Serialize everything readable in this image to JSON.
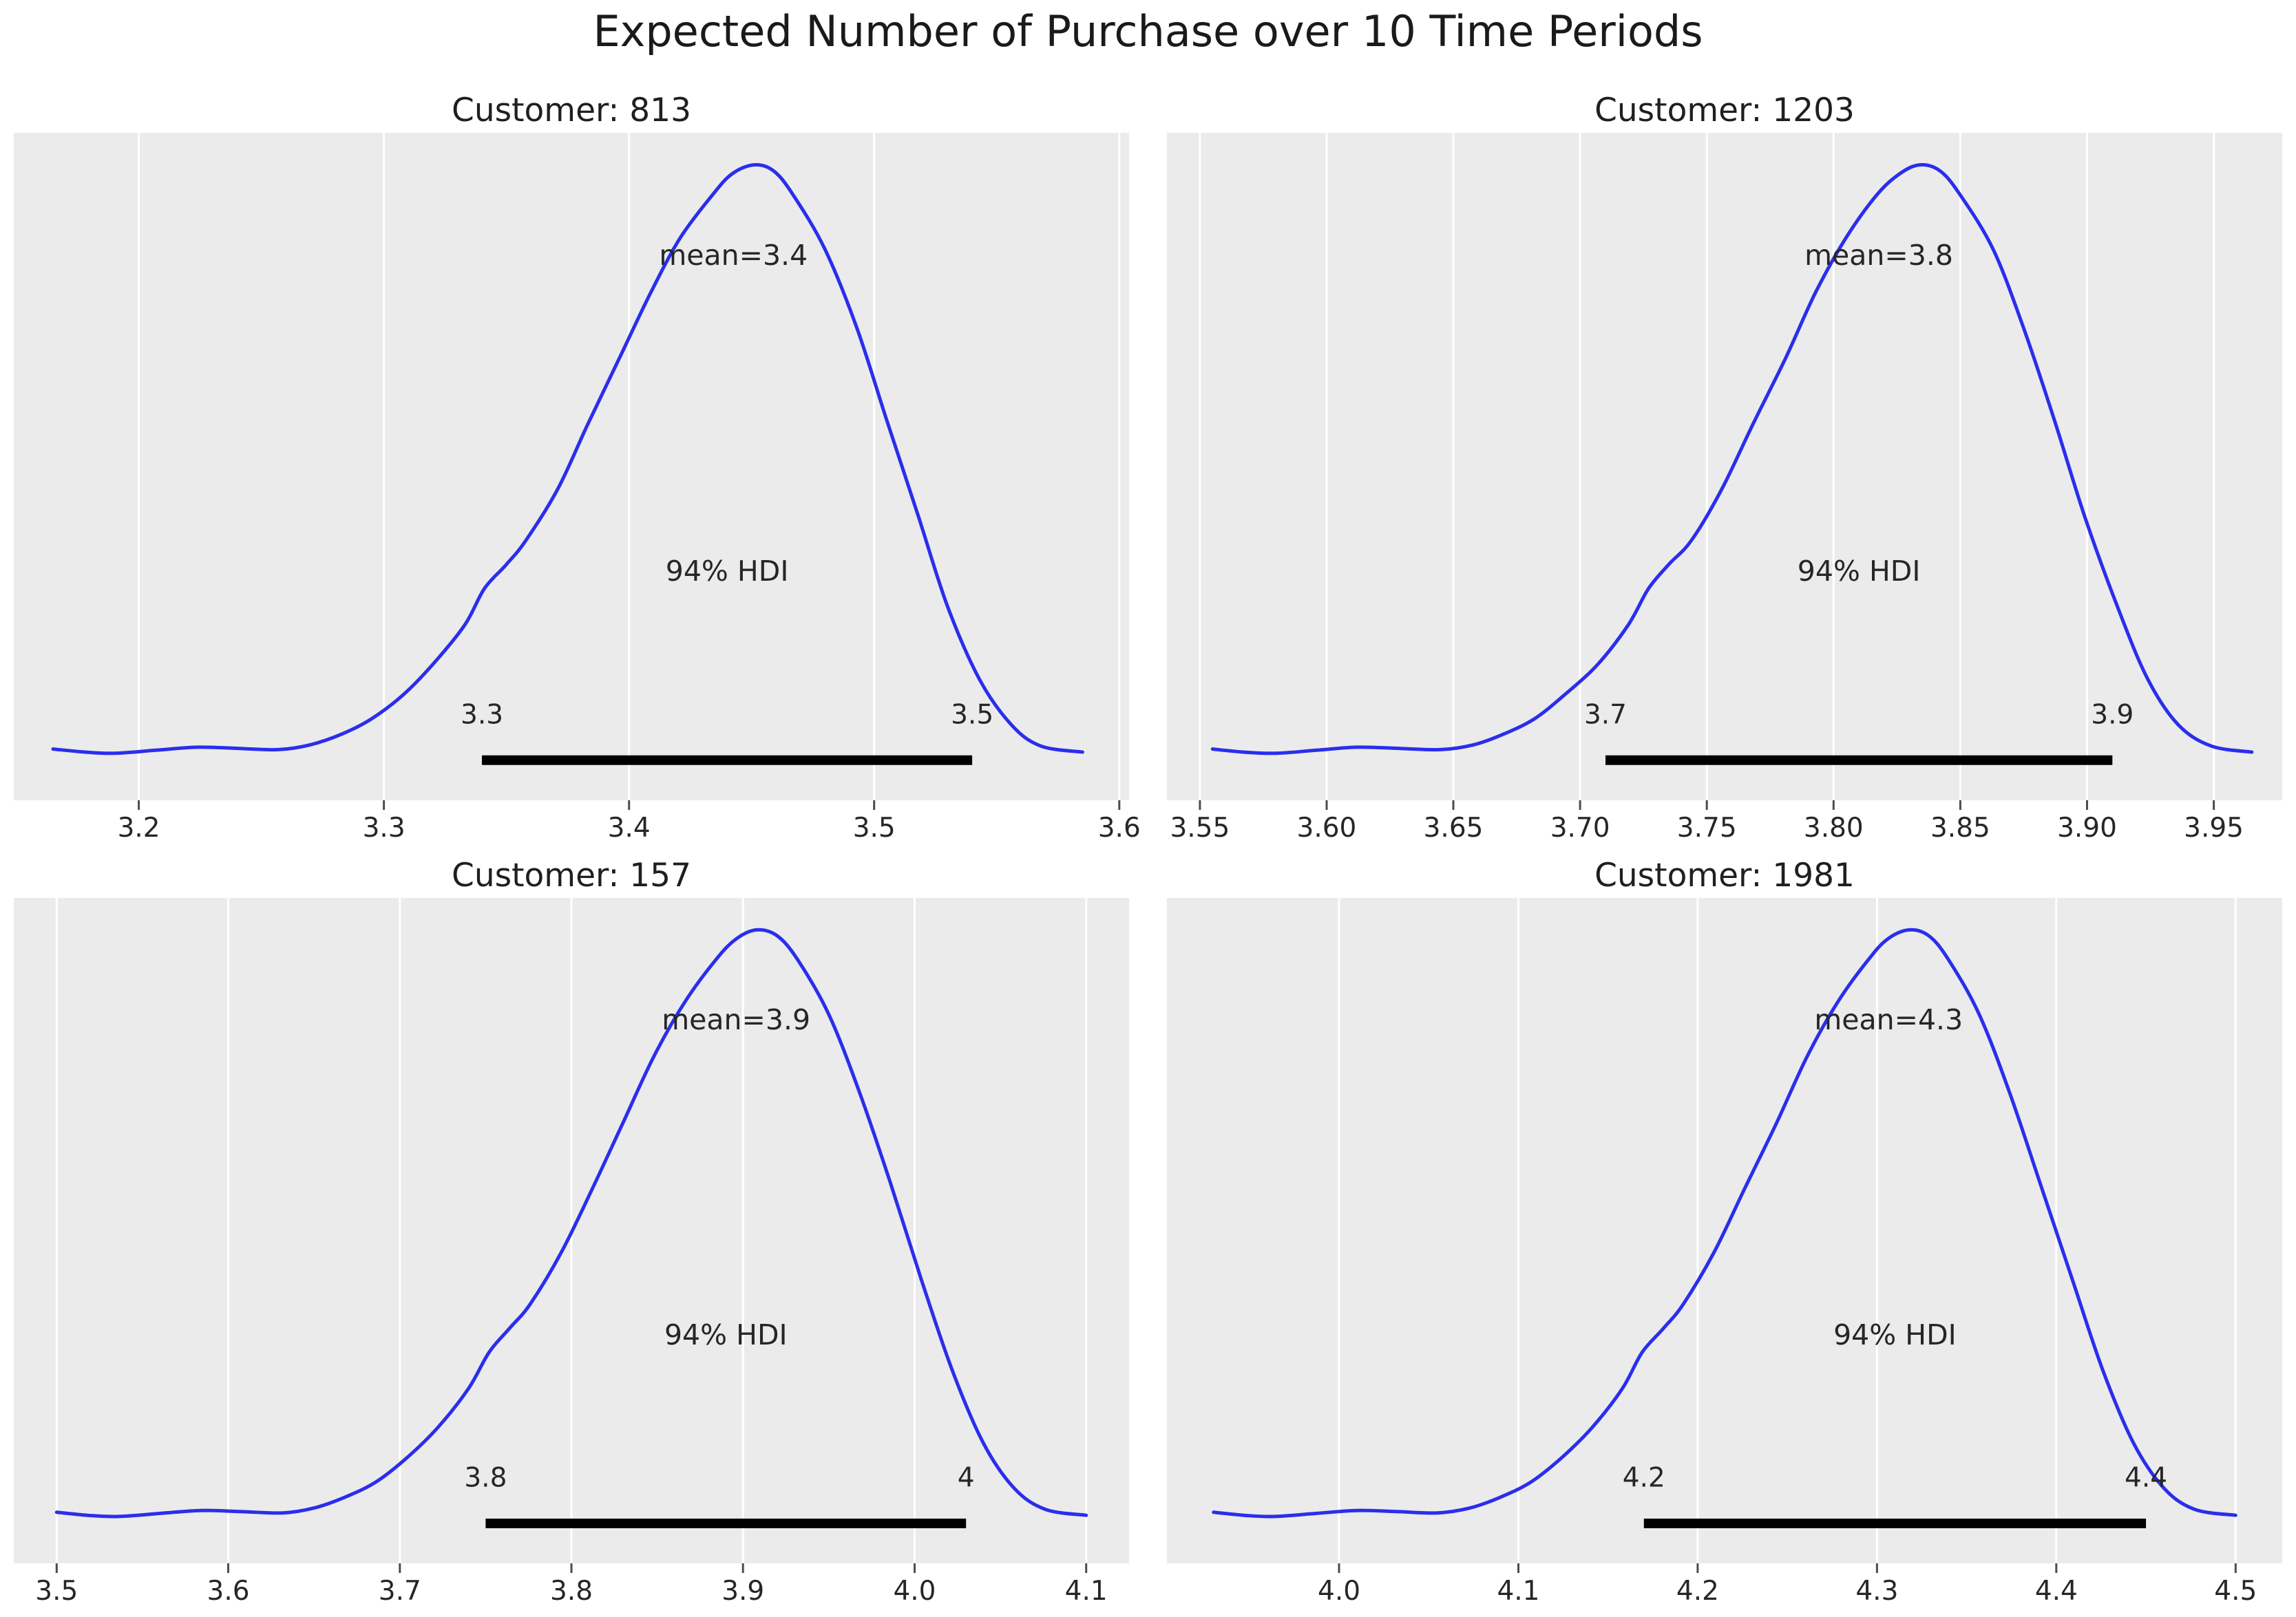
{
  "page": {
    "title": "Expected Number of Purchase over 10 Time Periods"
  },
  "colors": {
    "curve": "#2a2eec",
    "axes_background": "#ebebeb",
    "gridline": "#ffffff",
    "hdi_line": "#000000",
    "tick_mark": "#4d4d4d",
    "text": "#262626"
  },
  "chart_data": [
    {
      "type": "kde",
      "title": "Customer: 813",
      "mean": 3.4,
      "mean_label": "mean=3.4",
      "hdi": {
        "prob_label": "94% HDI",
        "lo": 3.34,
        "hi": 3.54,
        "lo_label": "3.3",
        "hi_label": "3.5"
      },
      "xlim": [
        3.149,
        3.604
      ],
      "xticks": [
        3.2,
        3.3,
        3.4,
        3.5,
        3.6
      ],
      "xtick_labels": [
        "3.2",
        "3.3",
        "3.4",
        "3.5",
        "3.6"
      ],
      "peak_x": 3.451,
      "curve": {
        "x": [
          3.165,
          3.178,
          3.19,
          3.207,
          3.224,
          3.241,
          3.257,
          3.27,
          3.283,
          3.295,
          3.308,
          3.32,
          3.333,
          3.341,
          3.35,
          3.358,
          3.371,
          3.383,
          3.396,
          3.409,
          3.421,
          3.434,
          3.442,
          3.451,
          3.459,
          3.467,
          3.48,
          3.493,
          3.505,
          3.518,
          3.53,
          3.543,
          3.556,
          3.568,
          3.585
        ],
        "y_norm": [
          0.035,
          0.03,
          0.028,
          0.033,
          0.038,
          0.036,
          0.034,
          0.042,
          0.06,
          0.085,
          0.125,
          0.175,
          0.24,
          0.3,
          0.34,
          0.38,
          0.465,
          0.57,
          0.68,
          0.79,
          0.88,
          0.95,
          0.985,
          1.0,
          0.99,
          0.95,
          0.86,
          0.73,
          0.58,
          0.42,
          0.27,
          0.15,
          0.075,
          0.04,
          0.03
        ]
      }
    },
    {
      "type": "kde",
      "title": "Customer: 1203",
      "mean": 3.8,
      "mean_label": "mean=3.8",
      "hdi": {
        "prob_label": "94% HDI",
        "lo": 3.71,
        "hi": 3.91,
        "lo_label": "3.7",
        "hi_label": "3.9"
      },
      "xlim": [
        3.537,
        3.977
      ],
      "xticks": [
        3.55,
        3.6,
        3.65,
        3.7,
        3.75,
        3.8,
        3.85,
        3.9,
        3.95
      ],
      "xtick_labels": [
        "3.55",
        "3.60",
        "3.65",
        "3.70",
        "3.75",
        "3.80",
        "3.85",
        "3.90",
        "3.95"
      ],
      "peak_x": 3.826,
      "curve": {
        "x": [
          3.555,
          3.567,
          3.58,
          3.596,
          3.612,
          3.629,
          3.645,
          3.658,
          3.67,
          3.682,
          3.694,
          3.707,
          3.719,
          3.727,
          3.735,
          3.744,
          3.756,
          3.768,
          3.781,
          3.793,
          3.805,
          3.817,
          3.826,
          3.834,
          3.842,
          3.85,
          3.863,
          3.875,
          3.887,
          3.899,
          3.912,
          3.924,
          3.936,
          3.949,
          3.965
        ],
        "y_norm": [
          0.035,
          0.03,
          0.028,
          0.033,
          0.038,
          0.036,
          0.034,
          0.042,
          0.06,
          0.085,
          0.125,
          0.175,
          0.24,
          0.3,
          0.34,
          0.38,
          0.465,
          0.57,
          0.68,
          0.79,
          0.88,
          0.95,
          0.985,
          1.0,
          0.99,
          0.95,
          0.86,
          0.73,
          0.58,
          0.42,
          0.27,
          0.15,
          0.075,
          0.04,
          0.03
        ]
      }
    },
    {
      "type": "kde",
      "title": "Customer: 157",
      "mean": 3.9,
      "mean_label": "mean=3.9",
      "hdi": {
        "prob_label": "94% HDI",
        "lo": 3.75,
        "hi": 4.03,
        "lo_label": "3.8",
        "hi_label": "4"
      },
      "xlim": [
        3.475,
        4.125
      ],
      "xticks": [
        3.5,
        3.6,
        3.7,
        3.8,
        3.9,
        4.0,
        4.1
      ],
      "xtick_labels": [
        "3.5",
        "3.6",
        "3.7",
        "3.8",
        "3.9",
        "4.0",
        "4.1"
      ],
      "peak_x": 3.908,
      "curve": {
        "x": [
          3.5,
          3.518,
          3.536,
          3.56,
          3.584,
          3.608,
          3.632,
          3.65,
          3.668,
          3.686,
          3.704,
          3.722,
          3.74,
          3.752,
          3.764,
          3.776,
          3.794,
          3.812,
          3.83,
          3.848,
          3.866,
          3.884,
          3.896,
          3.908,
          3.92,
          3.932,
          3.95,
          3.968,
          3.986,
          4.004,
          4.022,
          4.04,
          4.058,
          4.076,
          4.1
        ],
        "y_norm": [
          0.035,
          0.03,
          0.028,
          0.033,
          0.038,
          0.036,
          0.034,
          0.042,
          0.06,
          0.085,
          0.125,
          0.175,
          0.24,
          0.3,
          0.34,
          0.38,
          0.465,
          0.57,
          0.68,
          0.79,
          0.88,
          0.95,
          0.985,
          1.0,
          0.99,
          0.95,
          0.86,
          0.73,
          0.58,
          0.42,
          0.27,
          0.15,
          0.075,
          0.04,
          0.03
        ]
      }
    },
    {
      "type": "kde",
      "title": "Customer: 1981",
      "mean": 4.3,
      "mean_label": "mean=4.3",
      "hdi": {
        "prob_label": "94% HDI",
        "lo": 4.17,
        "hi": 4.45,
        "lo_label": "4.2",
        "hi_label": "4.4"
      },
      "xlim": [
        3.904,
        4.526
      ],
      "xticks": [
        4.0,
        4.1,
        4.2,
        4.3,
        4.4,
        4.5
      ],
      "xtick_labels": [
        "4.0",
        "4.1",
        "4.2",
        "4.3",
        "4.4",
        "4.5"
      ],
      "peak_x": 4.318,
      "curve": {
        "x": [
          3.93,
          3.947,
          3.964,
          3.987,
          4.01,
          4.033,
          4.055,
          4.073,
          4.09,
          4.107,
          4.124,
          4.141,
          4.158,
          4.169,
          4.181,
          4.192,
          4.209,
          4.226,
          4.244,
          4.261,
          4.278,
          4.295,
          4.306,
          4.318,
          4.329,
          4.34,
          4.357,
          4.374,
          4.391,
          4.409,
          4.426,
          4.443,
          4.46,
          4.477,
          4.5
        ],
        "y_norm": [
          0.035,
          0.03,
          0.028,
          0.033,
          0.038,
          0.036,
          0.034,
          0.042,
          0.06,
          0.085,
          0.125,
          0.175,
          0.24,
          0.3,
          0.34,
          0.38,
          0.465,
          0.57,
          0.68,
          0.79,
          0.88,
          0.95,
          0.985,
          1.0,
          0.99,
          0.95,
          0.86,
          0.73,
          0.58,
          0.42,
          0.27,
          0.15,
          0.075,
          0.04,
          0.03
        ]
      }
    }
  ]
}
